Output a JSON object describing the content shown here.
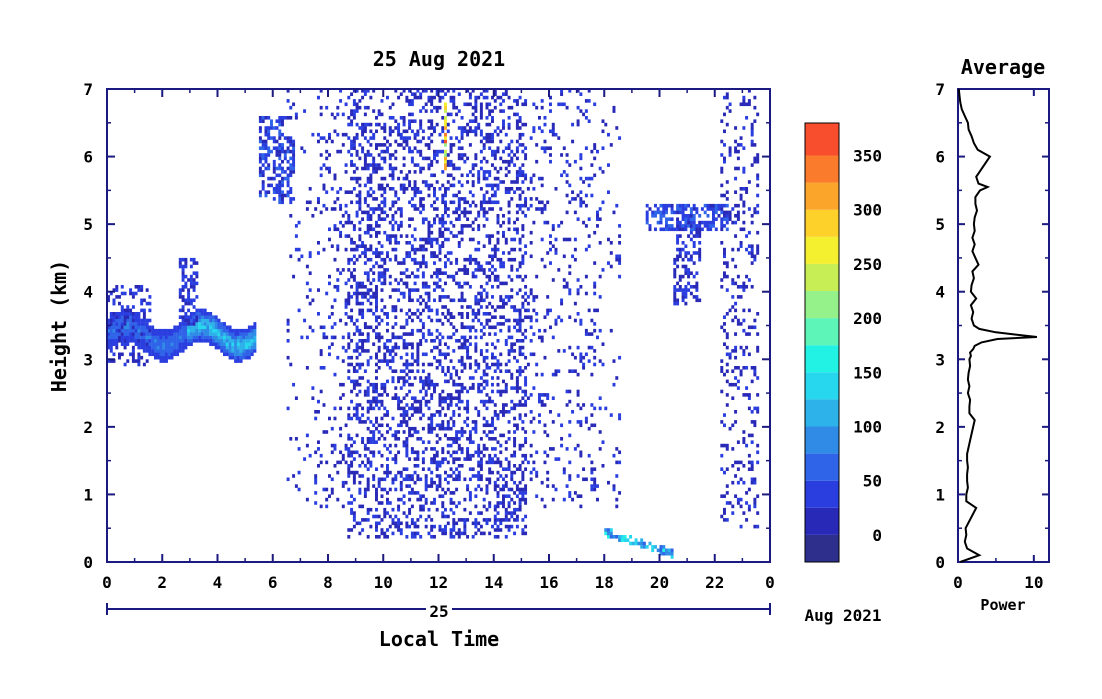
{
  "chart_data": [
    {
      "type": "heatmap",
      "title": "25 Aug 2021",
      "xlabel": "Local Time",
      "ylabel": "Height (km)",
      "xlim": [
        0,
        24
      ],
      "ylim": [
        0,
        7
      ],
      "x_ticks": [
        "0",
        "2",
        "4",
        "6",
        "8",
        "10",
        "12",
        "14",
        "16",
        "18",
        "20",
        "22",
        "0"
      ],
      "y_ticks": [
        "0",
        "1",
        "2",
        "3",
        "4",
        "5",
        "6",
        "7"
      ],
      "date_axis": {
        "day": "25",
        "month_year": "Aug 2021"
      },
      "colorbar": {
        "ticks": [
          "0",
          "50",
          "100",
          "150",
          "200",
          "250",
          "300",
          "350"
        ],
        "colors": [
          "#ffffff",
          "#2e2f8c",
          "#2929b8",
          "#2a3ee0",
          "#2f63e8",
          "#2f8be6",
          "#2eb2ea",
          "#26d7ee",
          "#21f2e4",
          "#5ef6b8",
          "#95f28a",
          "#c8ee56",
          "#f4f02f",
          "#fdd02a",
          "#fba52a",
          "#fa7b2c",
          "#f84e2e",
          "#f42a2a"
        ],
        "levels": [
          -25,
          0,
          25,
          50,
          75,
          100,
          125,
          150,
          175,
          200,
          225,
          250,
          275,
          300,
          325,
          350,
          375
        ],
        "range": [
          -25,
          380
        ]
      },
      "features": [
        {
          "label": "cloud layer 0-5 LT",
          "x": [
            0.0,
            5.4
          ],
          "y": [
            3.2,
            3.6
          ],
          "peak": 120
        },
        {
          "label": "cloud 5.5-6.8 LT",
          "x": [
            5.5,
            6.8
          ],
          "y": [
            5.3,
            6.6
          ],
          "peak": 60
        },
        {
          "label": "cloud 19.5-22.5 LT",
          "x": [
            19.5,
            22.5
          ],
          "y": [
            4.5,
            5.5
          ],
          "peak": 70
        },
        {
          "label": "noise 6.5-18.5 LT",
          "x": [
            6.5,
            18.5
          ],
          "y": [
            0.4,
            7.0
          ],
          "peak": 40
        },
        {
          "label": "boundary layer 18-20.5 LT",
          "x": [
            18.0,
            20.5
          ],
          "y": [
            0.1,
            0.45
          ],
          "peak": 150
        }
      ]
    },
    {
      "type": "line",
      "title": "Average",
      "xlabel": "Power",
      "ylabel": "",
      "xlim": [
        0,
        12
      ],
      "ylim": [
        0,
        7
      ],
      "x_ticks": [
        "0",
        "10"
      ],
      "y_ticks": [
        "0",
        "1",
        "2",
        "3",
        "4",
        "5",
        "6",
        "7"
      ],
      "color": "#000000",
      "x": [
        0.3,
        2.8,
        1.2,
        0.9,
        1.1,
        1.0,
        2.4,
        1.1,
        1.1,
        1.3,
        1.2,
        1.2,
        1.3,
        1.2,
        1.2,
        1.4,
        1.6,
        2.2,
        1.5,
        1.5,
        1.6,
        1.3,
        1.5,
        1.3,
        1.4,
        1.6,
        1.5,
        1.7,
        1.6,
        2.0,
        2.2,
        3.1,
        5.2,
        10.4,
        5.0,
        2.8,
        2.1,
        1.8,
        2.0,
        1.7,
        2.4,
        1.7,
        1.8,
        2.1,
        1.9,
        2.7,
        2.3,
        1.9,
        2.2,
        1.9,
        2.2,
        2.1,
        2.2,
        2.5,
        2.3,
        2.3,
        2.9,
        3.9,
        2.7,
        2.4,
        4.2,
        2.6,
        2.1,
        1.8,
        1.4,
        1.3,
        0.9,
        0.5,
        0.3,
        0.2,
        0.1
      ],
      "y": [
        0.0,
        0.1,
        0.2,
        0.3,
        0.4,
        0.5,
        0.8,
        0.9,
        1.0,
        1.1,
        1.2,
        1.3,
        1.4,
        1.5,
        1.6,
        1.7,
        1.8,
        2.1,
        2.2,
        2.3,
        2.4,
        2.5,
        2.6,
        2.7,
        2.8,
        2.9,
        3.0,
        3.05,
        3.1,
        3.15,
        3.2,
        3.25,
        3.3,
        3.33,
        3.4,
        3.45,
        3.5,
        3.6,
        3.7,
        3.8,
        3.9,
        4.0,
        4.1,
        4.2,
        4.3,
        4.4,
        4.5,
        4.6,
        4.7,
        4.8,
        4.9,
        5.0,
        5.1,
        5.2,
        5.3,
        5.4,
        5.5,
        5.55,
        5.6,
        5.7,
        6.0,
        6.1,
        6.2,
        6.3,
        6.4,
        6.5,
        6.6,
        6.7,
        6.8,
        6.9,
        7.0
      ]
    }
  ]
}
